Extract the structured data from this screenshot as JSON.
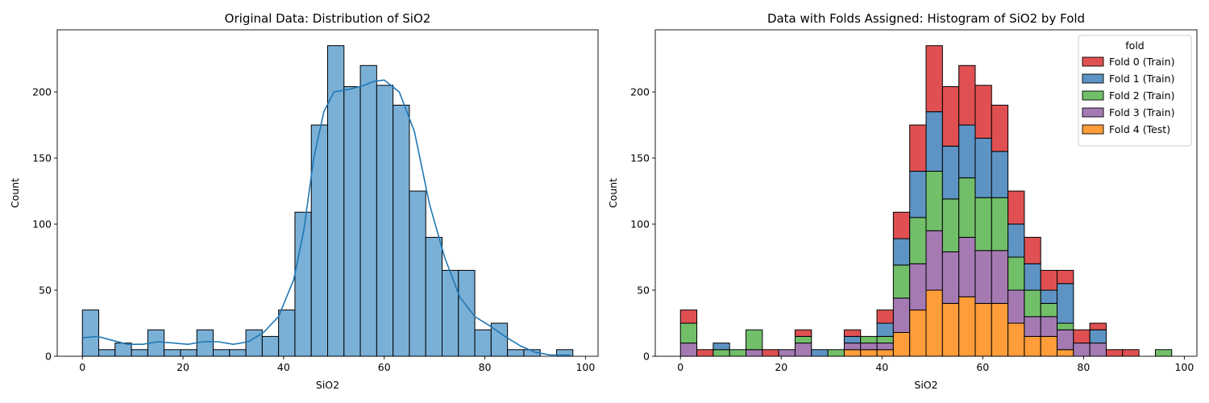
{
  "chart_data": [
    {
      "type": "bar",
      "subtype": "histogram-with-kde",
      "title": "Original Data: Distribution of SiO2",
      "xlabel": "SiO2",
      "ylabel": "Count",
      "xlim": [
        -5,
        102.5
      ],
      "ylim": [
        0,
        247
      ],
      "xticks": [
        0,
        20,
        40,
        60,
        80,
        100
      ],
      "yticks": [
        0,
        50,
        100,
        150,
        200
      ],
      "bin_start": 0,
      "bin_width": 3.25,
      "values": [
        35,
        5,
        10,
        5,
        20,
        5,
        5,
        20,
        5,
        5,
        20,
        15,
        35,
        109,
        175,
        235,
        204,
        220,
        205,
        190,
        125,
        90,
        65,
        65,
        20,
        25,
        5,
        5,
        0,
        5
      ],
      "kde": [
        [
          0,
          14
        ],
        [
          3,
          15
        ],
        [
          6,
          12
        ],
        [
          9,
          9
        ],
        [
          12,
          9
        ],
        [
          15,
          11
        ],
        [
          18,
          10
        ],
        [
          21,
          9
        ],
        [
          24,
          11
        ],
        [
          27,
          11
        ],
        [
          30,
          9
        ],
        [
          33,
          11
        ],
        [
          36,
          18
        ],
        [
          39,
          30
        ],
        [
          42,
          58
        ],
        [
          44,
          95
        ],
        [
          46,
          150
        ],
        [
          48,
          185
        ],
        [
          50,
          200
        ],
        [
          53,
          202
        ],
        [
          56,
          205
        ],
        [
          58,
          208
        ],
        [
          60,
          209
        ],
        [
          63,
          200
        ],
        [
          66,
          170
        ],
        [
          69,
          115
        ],
        [
          72,
          75
        ],
        [
          75,
          45
        ],
        [
          78,
          30
        ],
        [
          81,
          23
        ],
        [
          84,
          15
        ],
        [
          87,
          8
        ],
        [
          90,
          3
        ],
        [
          93,
          1
        ],
        [
          97,
          1
        ]
      ],
      "color": "#7ab0d6",
      "line_color": "#1f77b4",
      "grid": false
    },
    {
      "type": "bar",
      "subtype": "stacked-histogram",
      "title": "Data with Folds Assigned: Histogram of SiO2 by Fold",
      "xlabel": "SiO2",
      "ylabel": "Count",
      "xlim": [
        -5,
        102.5
      ],
      "ylim": [
        0,
        247
      ],
      "xticks": [
        0,
        20,
        40,
        60,
        80,
        100
      ],
      "yticks": [
        0,
        50,
        100,
        150,
        200
      ],
      "bin_start": 0,
      "bin_width": 3.25,
      "legend_title": "fold",
      "legend_position": "top-right",
      "series": [
        {
          "name": "Fold 4 (Test)",
          "color": "#ff9d3a",
          "values": [
            0,
            0,
            0,
            0,
            0,
            0,
            0,
            0,
            0,
            0,
            5,
            5,
            5,
            18,
            35,
            50,
            40,
            45,
            40,
            40,
            25,
            15,
            15,
            5,
            0,
            0,
            0,
            0,
            0,
            0
          ]
        },
        {
          "name": "Fold 3 (Train)",
          "color": "#a57ab3",
          "values": [
            10,
            0,
            0,
            0,
            5,
            0,
            5,
            10,
            0,
            0,
            5,
            5,
            5,
            26,
            35,
            45,
            39,
            45,
            40,
            40,
            25,
            15,
            15,
            15,
            10,
            10,
            0,
            0,
            0,
            0
          ]
        },
        {
          "name": "Fold 2 (Train)",
          "color": "#72bf6a",
          "values": [
            15,
            0,
            5,
            5,
            15,
            0,
            0,
            5,
            0,
            5,
            0,
            5,
            5,
            25,
            35,
            45,
            40,
            45,
            40,
            40,
            25,
            20,
            10,
            5,
            0,
            0,
            0,
            0,
            0,
            5
          ]
        },
        {
          "name": "Fold 1 (Train)",
          "color": "#5d94c4",
          "values": [
            0,
            0,
            5,
            0,
            0,
            0,
            0,
            0,
            5,
            0,
            5,
            0,
            10,
            20,
            35,
            45,
            40,
            40,
            45,
            35,
            25,
            20,
            10,
            30,
            0,
            10,
            0,
            0,
            0,
            0
          ]
        },
        {
          "name": "Fold 0 (Train)",
          "color": "#e05052",
          "values": [
            10,
            5,
            0,
            0,
            0,
            5,
            0,
            5,
            0,
            0,
            5,
            0,
            10,
            20,
            35,
            50,
            45,
            45,
            40,
            35,
            25,
            20,
            15,
            10,
            10,
            5,
            5,
            5,
            0,
            0
          ]
        }
      ],
      "grid": false
    }
  ]
}
